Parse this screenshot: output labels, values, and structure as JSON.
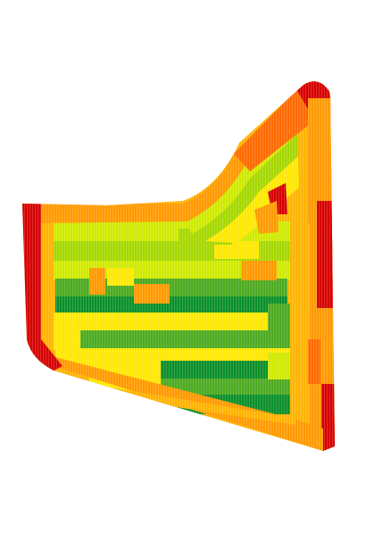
{
  "map": {
    "kind": "field-yield-map",
    "colors": {
      "red": "#d60000",
      "dark_orange": "#ff6a00",
      "orange": "#ff9a00",
      "light_orange": "#ffb300",
      "yellow": "#ffe800",
      "yellow_green": "#cfea00",
      "light_green": "#a6d800",
      "mid_green": "#4caa20",
      "dark_green": "#0b8f2a",
      "background": "#ffffff"
    }
  }
}
